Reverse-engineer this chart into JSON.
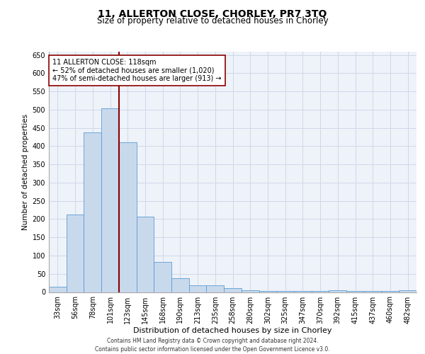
{
  "title_line1": "11, ALLERTON CLOSE, CHORLEY, PR7 3TQ",
  "title_line2": "Size of property relative to detached houses in Chorley",
  "xlabel": "Distribution of detached houses by size in Chorley",
  "ylabel": "Number of detached properties",
  "footnote": "Contains HM Land Registry data © Crown copyright and database right 2024.\nContains public sector information licensed under the Open Government Licence v3.0.",
  "bar_labels": [
    "33sqm",
    "56sqm",
    "78sqm",
    "101sqm",
    "123sqm",
    "145sqm",
    "168sqm",
    "190sqm",
    "213sqm",
    "235sqm",
    "258sqm",
    "280sqm",
    "302sqm",
    "325sqm",
    "347sqm",
    "370sqm",
    "392sqm",
    "415sqm",
    "437sqm",
    "460sqm",
    "482sqm"
  ],
  "bar_values": [
    15,
    213,
    437,
    503,
    410,
    207,
    83,
    38,
    18,
    18,
    10,
    5,
    2,
    2,
    2,
    2,
    5,
    2,
    2,
    2,
    5
  ],
  "bar_color": "#c9d9ec",
  "bar_edge_color": "#5b9bd5",
  "vline_x_index": 3.5,
  "vline_color": "#8b0000",
  "annotation_text": "11 ALLERTON CLOSE: 118sqm\n← 52% of detached houses are smaller (1,020)\n47% of semi-detached houses are larger (913) →",
  "annotation_box_color": "#ffffff",
  "annotation_box_edge": "#8b0000",
  "ylim": [
    0,
    660
  ],
  "yticks": [
    0,
    50,
    100,
    150,
    200,
    250,
    300,
    350,
    400,
    450,
    500,
    550,
    600,
    650
  ],
  "grid_color": "#d0d8e8",
  "background_color": "#eef2f9",
  "title1_fontsize": 10,
  "title2_fontsize": 8.5,
  "ylabel_fontsize": 7.5,
  "xlabel_fontsize": 8,
  "tick_fontsize": 7,
  "annot_fontsize": 7,
  "footnote_fontsize": 5.5
}
